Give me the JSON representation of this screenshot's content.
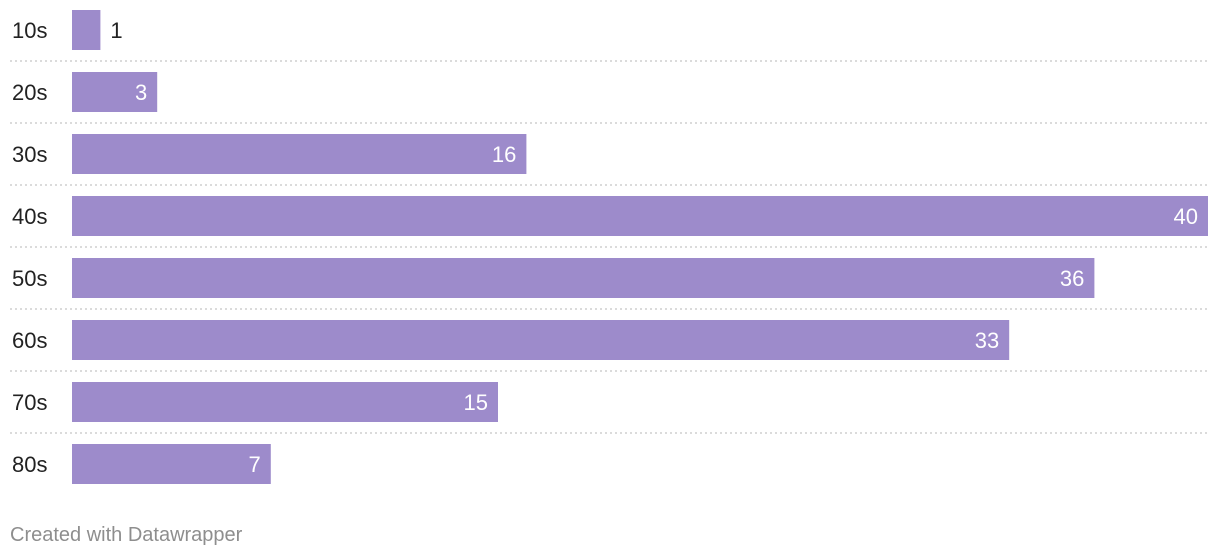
{
  "chart_data": {
    "type": "bar",
    "orientation": "horizontal",
    "categories": [
      "10s",
      "20s",
      "30s",
      "40s",
      "50s",
      "60s",
      "70s",
      "80s"
    ],
    "values": [
      1,
      3,
      16,
      40,
      36,
      33,
      15,
      7
    ],
    "xlim": [
      0,
      40
    ],
    "bar_color": "#9d8bcb",
    "label_color_inside": "#ffffff",
    "label_color_outside": "#222222",
    "grid": false,
    "row_separators": "dotted"
  },
  "footer": {
    "credit": "Created with Datawrapper"
  }
}
